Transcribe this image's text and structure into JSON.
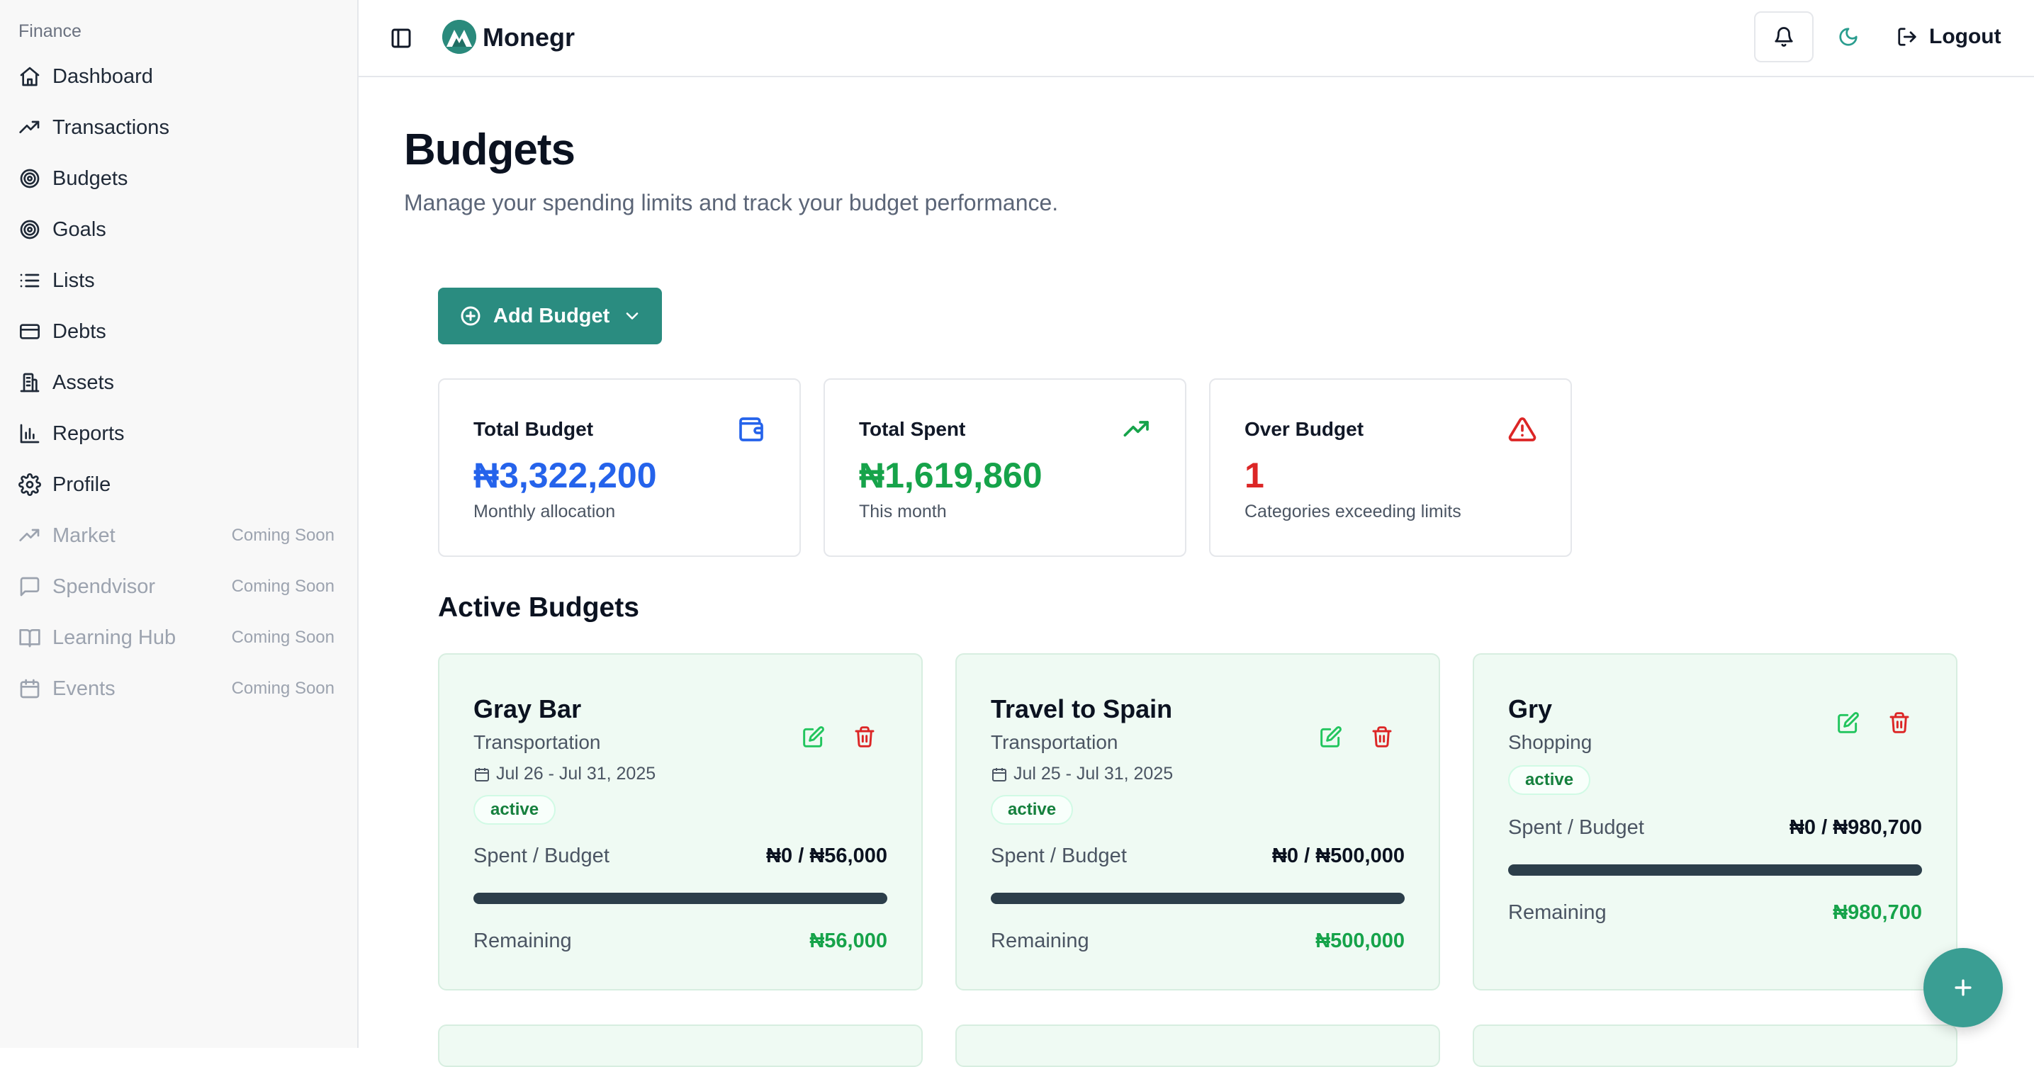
{
  "app": {
    "brand": "Monegr"
  },
  "sidebar": {
    "section": "Finance",
    "items": [
      {
        "label": "Dashboard",
        "icon": "home-icon",
        "soon": ""
      },
      {
        "label": "Transactions",
        "icon": "trending-up-icon",
        "soon": ""
      },
      {
        "label": "Budgets",
        "icon": "target-icon",
        "soon": ""
      },
      {
        "label": "Goals",
        "icon": "target-icon",
        "soon": ""
      },
      {
        "label": "Lists",
        "icon": "list-icon",
        "soon": ""
      },
      {
        "label": "Debts",
        "icon": "credit-card-icon",
        "soon": ""
      },
      {
        "label": "Assets",
        "icon": "building-icon",
        "soon": ""
      },
      {
        "label": "Reports",
        "icon": "bar-chart-icon",
        "soon": ""
      },
      {
        "label": "Profile",
        "icon": "gear-icon",
        "soon": ""
      },
      {
        "label": "Market",
        "icon": "trending-up-icon",
        "soon": "Coming Soon"
      },
      {
        "label": "Spendvisor",
        "icon": "message-icon",
        "soon": "Coming Soon"
      },
      {
        "label": "Learning Hub",
        "icon": "book-icon",
        "soon": "Coming Soon"
      },
      {
        "label": "Events",
        "icon": "calendar-icon",
        "soon": "Coming Soon"
      }
    ]
  },
  "header": {
    "logout": "Logout"
  },
  "page": {
    "title": "Budgets",
    "subtitle": "Manage your spending limits and track your budget performance.",
    "add_budget": "Add Budget"
  },
  "stats": [
    {
      "label": "Total Budget",
      "value": "₦3,322,200",
      "caption": "Monthly allocation",
      "icon": "wallet-icon",
      "color": "#2563eb"
    },
    {
      "label": "Total Spent",
      "value": "₦1,619,860",
      "caption": "This month",
      "icon": "trending-up-icon",
      "color": "#16a34a"
    },
    {
      "label": "Over Budget",
      "value": "1",
      "caption": "Categories exceeding limits",
      "icon": "alert-triangle-icon",
      "color": "#dc2626"
    }
  ],
  "active_budgets_title": "Active Budgets",
  "budgets": [
    {
      "name": "Gray Bar",
      "category": "Transportation",
      "dates": "Jul 26 - Jul 31, 2025",
      "status": "active",
      "spent_label": "Spent / Budget",
      "spent_value": "₦0 / ₦56,000",
      "progress": 0,
      "remaining_label": "Remaining",
      "remaining_value": "₦56,000"
    },
    {
      "name": "Travel to Spain",
      "category": "Transportation",
      "dates": "Jul 25 - Jul 31, 2025",
      "status": "active",
      "spent_label": "Spent / Budget",
      "spent_value": "₦0 / ₦500,000",
      "progress": 0,
      "remaining_label": "Remaining",
      "remaining_value": "₦500,000"
    },
    {
      "name": "Gry",
      "category": "Shopping",
      "dates": "",
      "status": "active",
      "spent_label": "Spent / Budget",
      "spent_value": "₦0 / ₦980,700",
      "progress": 0,
      "remaining_label": "Remaining",
      "remaining_value": "₦980,700"
    }
  ],
  "colors": {
    "accent": "#2a8c80",
    "card_bg": "#effaf3",
    "positive": "#16a34a",
    "danger": "#dc2626",
    "info": "#2563eb"
  }
}
